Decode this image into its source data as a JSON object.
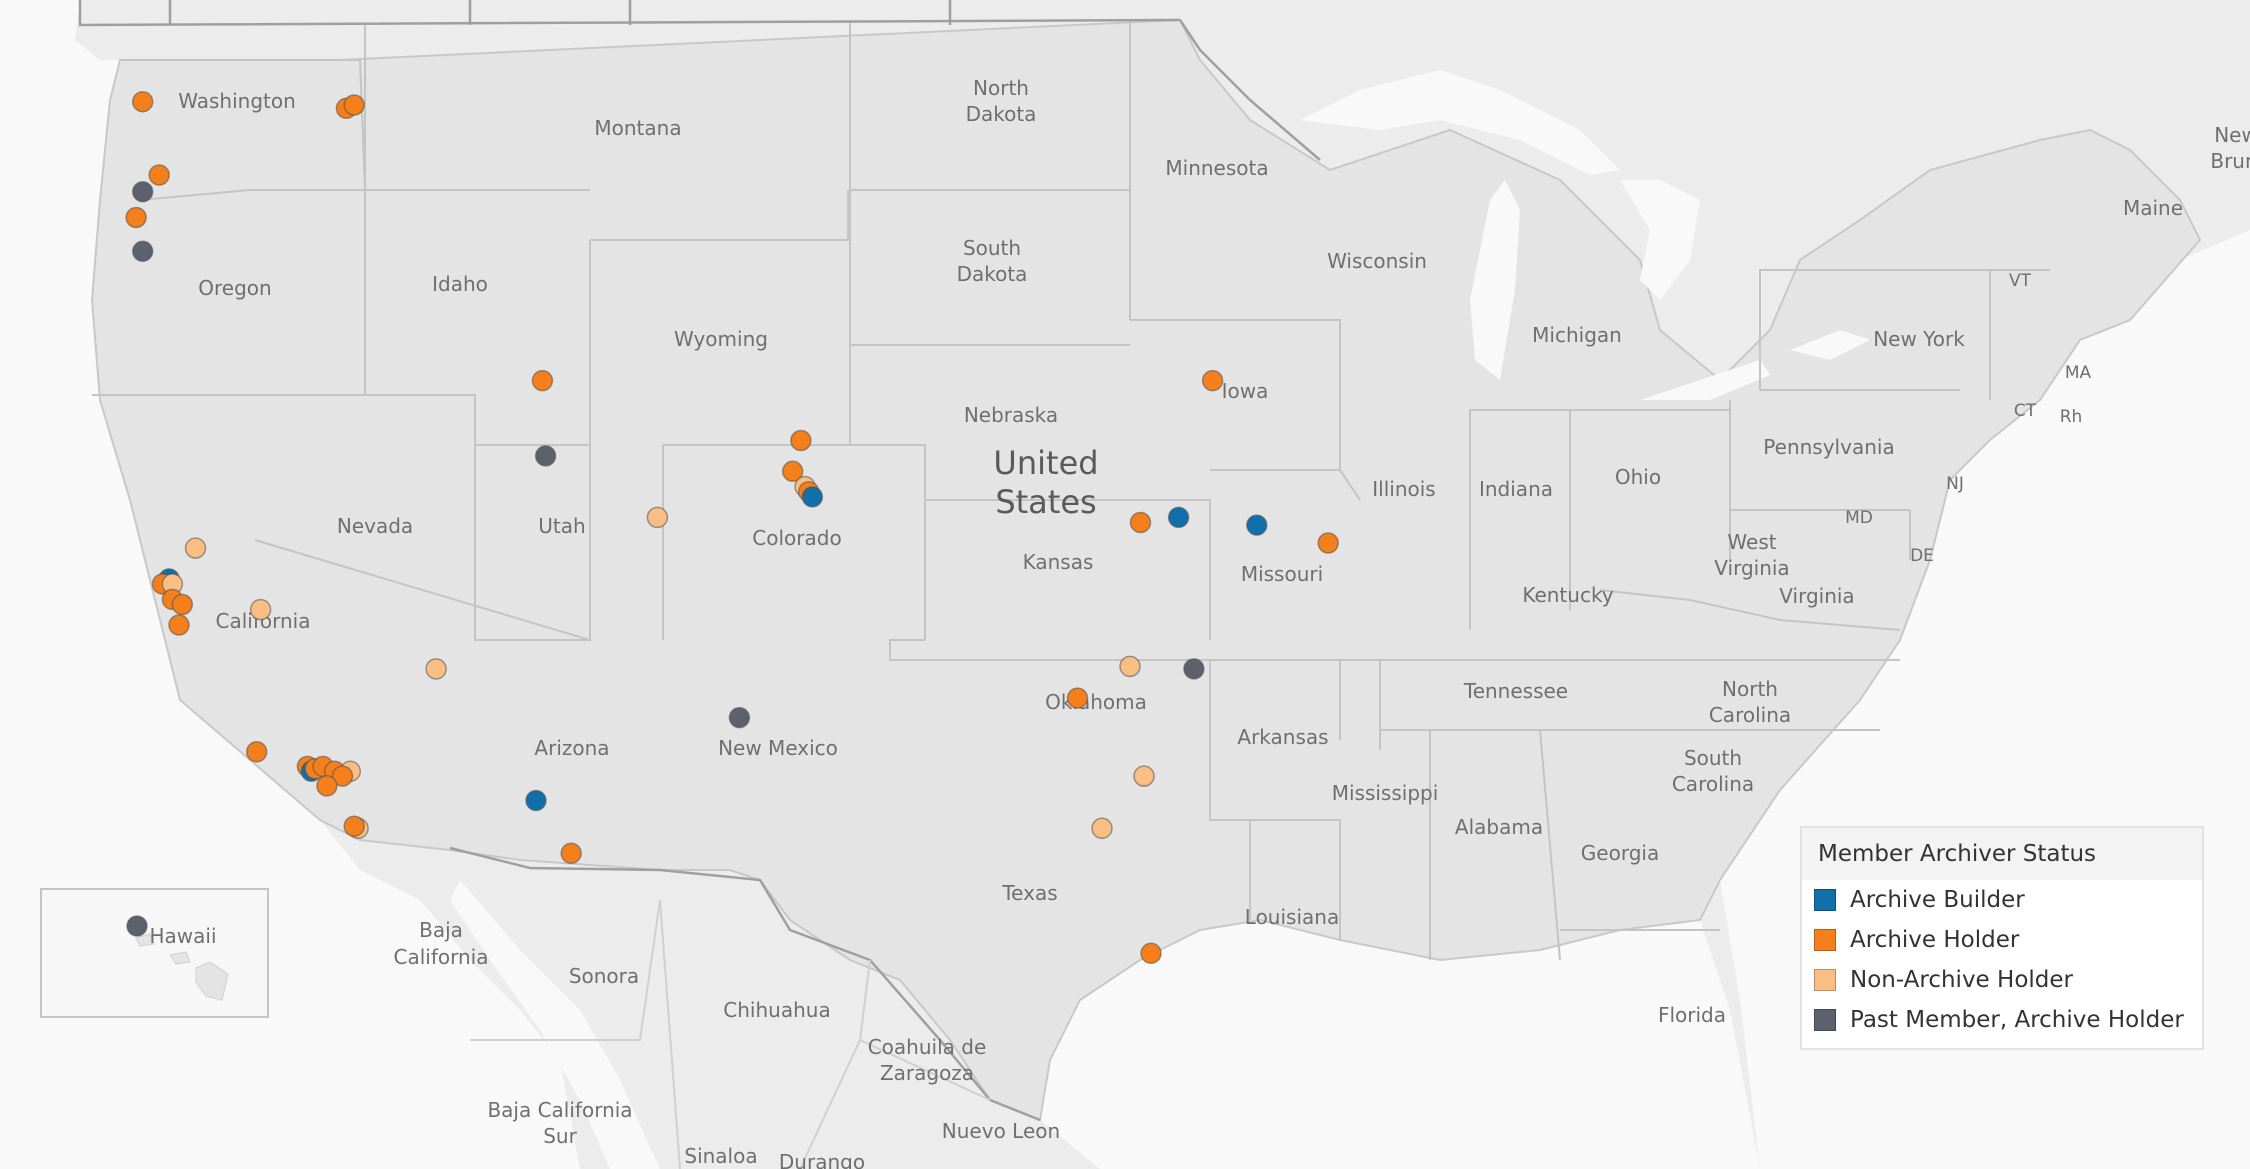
{
  "legend": {
    "title": "Member Archiver Status",
    "items": [
      {
        "label": "Archive Builder",
        "color": "#1170aa"
      },
      {
        "label": "Archive Holder",
        "color": "#f47f1b"
      },
      {
        "label": "Non-Archive Holder",
        "color": "#f9be84"
      },
      {
        "label": "Past Member, Archive Holder",
        "color": "#5c616e"
      }
    ]
  },
  "inset_label": "Hawaii",
  "map_labels": {
    "washington": "Washington",
    "oregon": "Oregon",
    "idaho": "Idaho",
    "montana": "Montana",
    "north_dakota_1": "North",
    "north_dakota_2": "Dakota",
    "south_dakota_1": "South",
    "south_dakota_2": "Dakota",
    "minnesota": "Minnesota",
    "wisconsin": "Wisconsin",
    "michigan": "Michigan",
    "wyoming": "Wyoming",
    "nebraska": "Nebraska",
    "iowa": "Iowa",
    "united_states_1": "United",
    "united_states_2": "States",
    "nevada": "Nevada",
    "utah": "Utah",
    "colorado": "Colorado",
    "kansas": "Kansas",
    "missouri": "Missouri",
    "illinois": "Illinois",
    "indiana": "Indiana",
    "ohio": "Ohio",
    "california": "California",
    "arizona": "Arizona",
    "new_mexico": "New Mexico",
    "oklahoma": "Oklahoma",
    "arkansas": "Arkansas",
    "texas": "Texas",
    "louisiana": "Louisiana",
    "mississippi": "Mississippi",
    "alabama": "Alabama",
    "georgia": "Georgia",
    "florida": "Florida",
    "tennessee": "Tennessee",
    "kentucky": "Kentucky",
    "west_virginia_1": "West",
    "west_virginia_2": "Virginia",
    "virginia": "Virginia",
    "north_carolina_1": "North",
    "north_carolina_2": "Carolina",
    "south_carolina_1": "South",
    "south_carolina_2": "Carolina",
    "pennsylvania": "Pennsylvania",
    "new_york": "New York",
    "maine": "Maine",
    "vt": "VT",
    "ma": "MA",
    "ct": "CT",
    "ri": "Rh",
    "nj": "NJ",
    "md": "MD",
    "de": "DE",
    "new_brunswick_1": "New",
    "new_brunswick_2": "Brun",
    "baja_california_1": "Baja",
    "baja_california_2": "California",
    "sonora": "Sonora",
    "chihuahua": "Chihuahua",
    "coahuila_1": "Coahuila de",
    "coahuila_2": "Zaragoza",
    "nuevo_leon": "Nuevo Leon",
    "baja_sur_1": "Baja California",
    "baja_sur_2": "Sur",
    "sinaloa": "Sinaloa",
    "durango": "Durango"
  },
  "markers": [
    {
      "status": "Archive Holder",
      "lat": 47.8,
      "lon": -123.1
    },
    {
      "status": "Archive Holder",
      "lat": 47.6,
      "lon": -117.4
    },
    {
      "status": "Archive Holder",
      "lat": 47.7,
      "lon": -117.2
    },
    {
      "status": "Archive Holder",
      "lat": 45.6,
      "lon": -122.6
    },
    {
      "status": "Past Member, Archive Holder",
      "lat": 45.1,
      "lon": -123.1
    },
    {
      "status": "Archive Holder",
      "lat": 44.6,
      "lon": -123.3
    },
    {
      "status": "Past Member, Archive Holder",
      "lat": 44.0,
      "lon": -123.1
    },
    {
      "status": "Archive Holder",
      "lat": 41.7,
      "lon": -111.8
    },
    {
      "status": "Past Member, Archive Holder",
      "lat": 40.3,
      "lon": -111.7
    },
    {
      "status": "Archive Holder",
      "lat": 40.6,
      "lon": -105.1
    },
    {
      "status": "Archive Holder",
      "lat": 40.0,
      "lon": -105.3
    },
    {
      "status": "Non-Archive Holder",
      "lat": 39.7,
      "lon": -105.0
    },
    {
      "status": "Archive Holder",
      "lat": 39.6,
      "lon": -104.9
    },
    {
      "status": "Archive Builder",
      "lat": 39.5,
      "lon": -104.8
    },
    {
      "status": "Non-Archive Holder",
      "lat": 39.1,
      "lon": -108.6
    },
    {
      "status": "Non-Archive Holder",
      "lat": 38.5,
      "lon": -121.5
    },
    {
      "status": "Archive Builder",
      "lat": 37.9,
      "lon": -122.3
    },
    {
      "status": "Archive Holder",
      "lat": 37.8,
      "lon": -122.5
    },
    {
      "status": "Non-Archive Holder",
      "lat": 37.8,
      "lon": -122.2
    },
    {
      "status": "Archive Holder",
      "lat": 37.5,
      "lon": -122.2
    },
    {
      "status": "Archive Holder",
      "lat": 37.4,
      "lon": -121.9
    },
    {
      "status": "Archive Holder",
      "lat": 37.0,
      "lon": -122.0
    },
    {
      "status": "Non-Archive Holder",
      "lat": 37.3,
      "lon": -119.6
    },
    {
      "status": "Non-Archive Holder",
      "lat": 36.1,
      "lon": -115.1
    },
    {
      "status": "Archive Holder",
      "lat": 34.4,
      "lon": -119.7
    },
    {
      "status": "Archive Holder",
      "lat": 34.1,
      "lon": -118.4
    },
    {
      "status": "Archive Builder",
      "lat": 34.0,
      "lon": -118.3
    },
    {
      "status": "Archive Holder",
      "lat": 34.05,
      "lon": -118.2
    },
    {
      "status": "Archive Holder",
      "lat": 34.1,
      "lon": -118.0
    },
    {
      "status": "Archive Holder",
      "lat": 34.0,
      "lon": -117.7
    },
    {
      "status": "Non-Archive Holder",
      "lat": 34.0,
      "lon": -117.3
    },
    {
      "status": "Archive Holder",
      "lat": 33.9,
      "lon": -117.5
    },
    {
      "status": "Archive Holder",
      "lat": 33.7,
      "lon": -117.9
    },
    {
      "status": "Non-Archive Holder",
      "lat": 32.8,
      "lon": -117.1
    },
    {
      "status": "Archive Holder",
      "lat": 32.85,
      "lon": -117.2
    },
    {
      "status": "Archive Builder",
      "lat": 33.4,
      "lon": -112.0
    },
    {
      "status": "Archive Holder",
      "lat": 32.2,
      "lon": -110.9
    },
    {
      "status": "Past Member, Archive Holder",
      "lat": 35.1,
      "lon": -106.6
    },
    {
      "status": "Archive Holder",
      "lat": 39.0,
      "lon": -95.7
    },
    {
      "status": "Archive Builder",
      "lat": 39.1,
      "lon": -94.6
    },
    {
      "status": "Archive Builder",
      "lat": 38.95,
      "lon": -92.3
    },
    {
      "status": "Archive Holder",
      "lat": 38.6,
      "lon": -90.2
    },
    {
      "status": "Archive Holder",
      "lat": 41.7,
      "lon": -93.6
    },
    {
      "status": "Non-Archive Holder",
      "lat": 36.15,
      "lon": -96.0
    },
    {
      "status": "Archive Holder",
      "lat": 35.5,
      "lon": -97.5
    },
    {
      "status": "Past Member, Archive Holder",
      "lat": 36.1,
      "lon": -94.15
    },
    {
      "status": "Non-Archive Holder",
      "lat": 33.9,
      "lon": -95.6
    },
    {
      "status": "Non-Archive Holder",
      "lat": 32.8,
      "lon": -96.8
    },
    {
      "status": "Archive Holder",
      "lat": 29.8,
      "lon": -95.4
    },
    {
      "status": "Past Member, Archive Holder",
      "lat": 21.3,
      "lon": -157.8,
      "inset": "hawaii"
    }
  ]
}
